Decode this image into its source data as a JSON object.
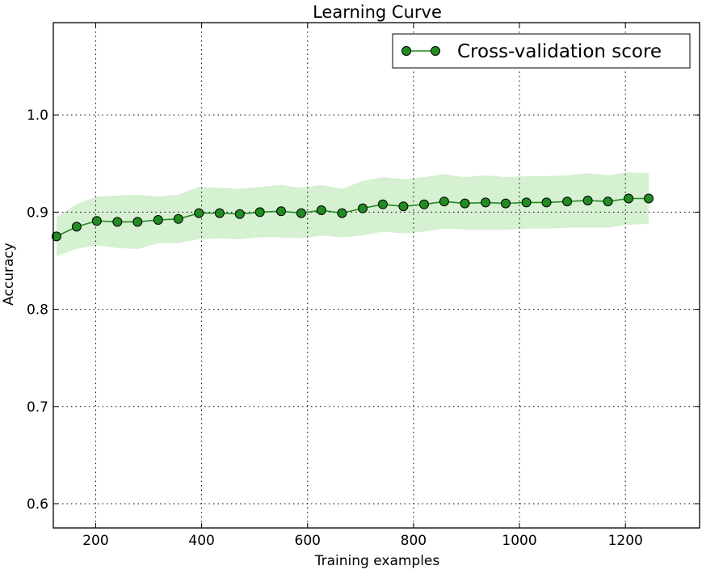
{
  "chart_data": {
    "type": "line",
    "title": "Learning Curve",
    "xlabel": "Training examples",
    "ylabel": "Accuracy",
    "xlim": [
      120,
      1340
    ],
    "ylim": [
      0.575,
      1.095
    ],
    "xticks": [
      200,
      400,
      600,
      800,
      1000,
      1200
    ],
    "yticks": [
      0.6,
      0.7,
      0.8,
      0.9,
      1.0
    ],
    "xtick_labels": [
      "200",
      "400",
      "600",
      "800",
      "1000",
      "1200"
    ],
    "ytick_labels": [
      "0.6",
      "0.7",
      "0.8",
      "0.9",
      "1.0"
    ],
    "grid": true,
    "legend_position": "top-right",
    "series": [
      {
        "name": "Cross-validation score",
        "color": "#228b22",
        "band_color": "#d6f0d2",
        "x": [
          126,
          164,
          202,
          241,
          279,
          318,
          356,
          395,
          434,
          472,
          510,
          550,
          588,
          626,
          665,
          704,
          742,
          781,
          820,
          858,
          897,
          936,
          974,
          1013,
          1051,
          1090,
          1129,
          1167,
          1206,
          1244
        ],
        "y": [
          0.875,
          0.885,
          0.891,
          0.89,
          0.89,
          0.892,
          0.893,
          0.899,
          0.899,
          0.898,
          0.9,
          0.901,
          0.899,
          0.902,
          0.899,
          0.904,
          0.908,
          0.906,
          0.908,
          0.911,
          0.909,
          0.91,
          0.909,
          0.91,
          0.91,
          0.911,
          0.912,
          0.911,
          0.914,
          0.914
        ],
        "lower": [
          0.855,
          0.862,
          0.866,
          0.863,
          0.862,
          0.868,
          0.868,
          0.872,
          0.873,
          0.872,
          0.874,
          0.874,
          0.873,
          0.876,
          0.874,
          0.876,
          0.88,
          0.878,
          0.88,
          0.883,
          0.882,
          0.882,
          0.882,
          0.883,
          0.883,
          0.884,
          0.884,
          0.884,
          0.887,
          0.888
        ],
        "upper": [
          0.895,
          0.908,
          0.916,
          0.917,
          0.918,
          0.916,
          0.918,
          0.926,
          0.925,
          0.924,
          0.926,
          0.928,
          0.925,
          0.928,
          0.924,
          0.932,
          0.936,
          0.934,
          0.936,
          0.939,
          0.936,
          0.938,
          0.936,
          0.937,
          0.937,
          0.938,
          0.94,
          0.938,
          0.941,
          0.94
        ]
      }
    ]
  }
}
